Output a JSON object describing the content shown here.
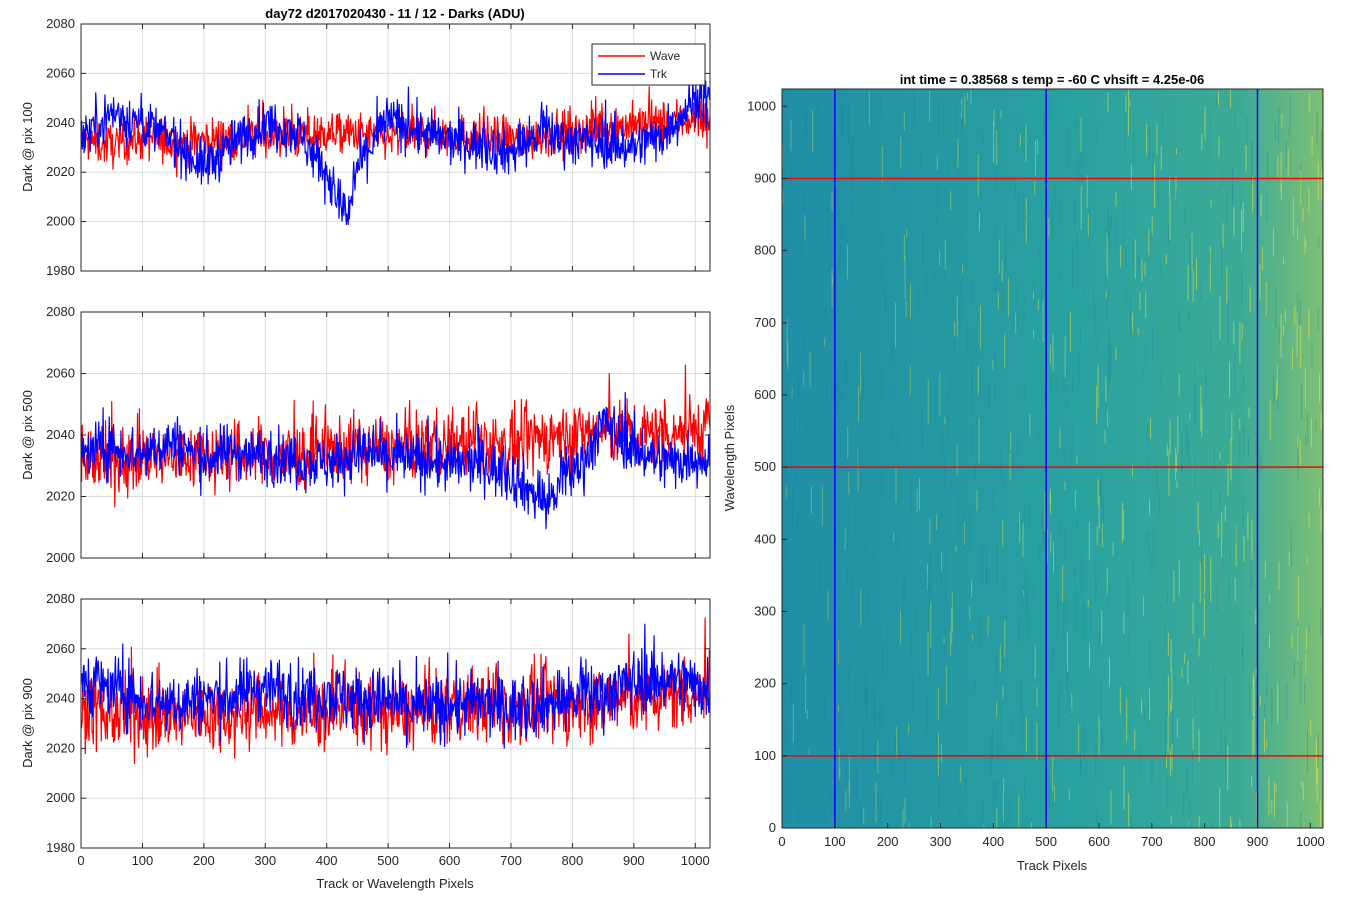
{
  "figure_title": "day72 d2017020430 - 11 / 12 - Darks (ADU)",
  "colors": {
    "wave": "#ff0000",
    "trk": "#0000ff",
    "grid": "#dcdcdc",
    "axis": "#262626",
    "heat_low": "#1f8fa6",
    "heat_high": "#d8e048"
  },
  "chart_data": [
    {
      "type": "line",
      "title": "day72 d2017020430 - 11 / 12 - Darks (ADU)",
      "xlabel": "",
      "ylabel": "Dark @ pix 100",
      "xlim": [
        0,
        1024
      ],
      "ylim": [
        1980,
        2080
      ],
      "xticks": [
        0,
        100,
        200,
        300,
        400,
        500,
        600,
        700,
        800,
        900,
        1000
      ],
      "yticks": [
        1980,
        2000,
        2020,
        2040,
        2060,
        2080
      ],
      "grid": true,
      "legend": {
        "position": "top-right",
        "entries": [
          "Wave",
          "Trk"
        ]
      },
      "series": [
        {
          "name": "Wave",
          "color": "#ff0000",
          "x": [
            0,
            50,
            100,
            150,
            200,
            250,
            300,
            350,
            400,
            450,
            500,
            550,
            600,
            650,
            700,
            750,
            800,
            850,
            900,
            950,
            1000,
            1024
          ],
          "values": [
            2033,
            2031,
            2034,
            2032,
            2033,
            2034,
            2035,
            2034,
            2036,
            2035,
            2034,
            2036,
            2035,
            2034,
            2033,
            2035,
            2036,
            2038,
            2039,
            2040,
            2042,
            2041
          ]
        },
        {
          "name": "Trk",
          "color": "#0000ff",
          "x": [
            0,
            50,
            100,
            150,
            200,
            250,
            300,
            350,
            400,
            420,
            435,
            450,
            500,
            550,
            600,
            650,
            700,
            750,
            800,
            850,
            900,
            950,
            1000,
            1024
          ],
          "values": [
            2035,
            2044,
            2040,
            2033,
            2022,
            2032,
            2040,
            2037,
            2020,
            2008,
            2001,
            2022,
            2042,
            2036,
            2033,
            2031,
            2028,
            2036,
            2033,
            2032,
            2030,
            2036,
            2050,
            2048
          ]
        }
      ]
    },
    {
      "type": "line",
      "title": "",
      "xlabel": "",
      "ylabel": "Dark @ pix 500",
      "xlim": [
        0,
        1024
      ],
      "ylim": [
        2000,
        2080
      ],
      "xticks": [
        0,
        100,
        200,
        300,
        400,
        500,
        600,
        700,
        800,
        900,
        1000
      ],
      "yticks": [
        2000,
        2020,
        2040,
        2060,
        2080
      ],
      "grid": true,
      "series": [
        {
          "name": "Wave",
          "color": "#ff0000",
          "x": [
            0,
            50,
            100,
            150,
            200,
            250,
            300,
            350,
            400,
            450,
            500,
            550,
            600,
            650,
            700,
            750,
            800,
            850,
            900,
            950,
            1000,
            1024
          ],
          "values": [
            2033,
            2031,
            2033,
            2032,
            2034,
            2033,
            2034,
            2033,
            2035,
            2036,
            2035,
            2036,
            2037,
            2038,
            2036,
            2039,
            2040,
            2041,
            2040,
            2041,
            2042,
            2043
          ]
        },
        {
          "name": "Trk",
          "color": "#0000ff",
          "x": [
            0,
            50,
            100,
            150,
            200,
            250,
            300,
            350,
            400,
            450,
            500,
            550,
            600,
            650,
            700,
            730,
            760,
            790,
            820,
            850,
            900,
            950,
            1000,
            1024
          ],
          "values": [
            2034,
            2036,
            2034,
            2038,
            2032,
            2035,
            2033,
            2032,
            2031,
            2034,
            2033,
            2032,
            2030,
            2031,
            2027,
            2022,
            2018,
            2026,
            2032,
            2044,
            2036,
            2031,
            2033,
            2031
          ]
        }
      ]
    },
    {
      "type": "line",
      "title": "",
      "xlabel": "Track or Wavelength Pixels",
      "ylabel": "Dark @ pix 900",
      "xlim": [
        0,
        1024
      ],
      "ylim": [
        1980,
        2080
      ],
      "xticks": [
        0,
        100,
        200,
        300,
        400,
        500,
        600,
        700,
        800,
        900,
        1000
      ],
      "yticks": [
        1980,
        2000,
        2020,
        2040,
        2060,
        2080
      ],
      "grid": true,
      "series": [
        {
          "name": "Wave",
          "color": "#ff0000",
          "x": [
            0,
            50,
            100,
            150,
            200,
            250,
            300,
            350,
            400,
            450,
            500,
            550,
            600,
            650,
            700,
            750,
            800,
            850,
            900,
            950,
            1000,
            1024
          ],
          "values": [
            2036,
            2033,
            2034,
            2032,
            2033,
            2034,
            2035,
            2033,
            2034,
            2036,
            2034,
            2035,
            2036,
            2037,
            2036,
            2038,
            2037,
            2039,
            2040,
            2041,
            2043,
            2044
          ]
        },
        {
          "name": "Trk",
          "color": "#0000ff",
          "x": [
            0,
            50,
            100,
            150,
            200,
            250,
            300,
            350,
            400,
            450,
            500,
            550,
            600,
            650,
            700,
            750,
            800,
            850,
            900,
            950,
            1000,
            1024
          ],
          "values": [
            2048,
            2044,
            2040,
            2038,
            2040,
            2041,
            2046,
            2041,
            2042,
            2040,
            2039,
            2036,
            2037,
            2038,
            2036,
            2038,
            2040,
            2042,
            2047,
            2048,
            2046,
            2043
          ]
        }
      ]
    },
    {
      "type": "heatmap",
      "title": "int time = 0.38568 s   temp = -60 C   vhsift = 4.25e-06",
      "xlabel": "Track Pixels",
      "ylabel": "Wavelength Pixels",
      "xlim": [
        0,
        1024
      ],
      "ylim": [
        0,
        1024
      ],
      "xticks": [
        0,
        100,
        200,
        300,
        400,
        500,
        600,
        700,
        800,
        900,
        1000
      ],
      "yticks": [
        0,
        100,
        200,
        300,
        400,
        500,
        600,
        700,
        800,
        900,
        1000
      ],
      "vertical_markers": {
        "color": "#0000ff",
        "x": [
          100,
          500,
          900
        ]
      },
      "horizontal_markers": {
        "color": "#ff0000",
        "y": [
          100,
          500,
          900
        ]
      }
    }
  ]
}
